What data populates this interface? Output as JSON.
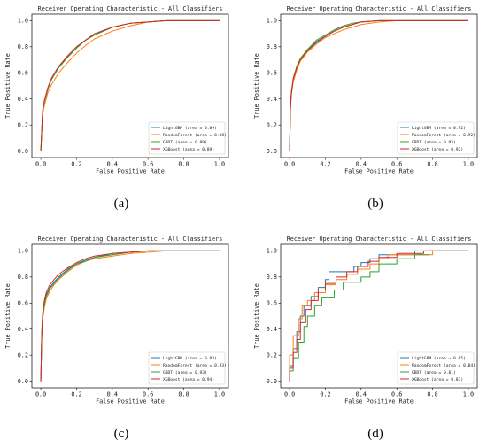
{
  "colors": {
    "LightGBM": "#1f77b4",
    "RandomForest": "#ff7f0e",
    "GBDT": "#2ca02c",
    "XGBoost": "#d62728"
  },
  "chart_data": [
    {
      "type": "line",
      "panel": "(a)",
      "title": "Receiver Operating Characteristic - All Classifiers",
      "xlabel": "False Positive Rate",
      "ylabel": "True Positive Rate",
      "xlim": [
        0,
        1
      ],
      "ylim": [
        0,
        1
      ],
      "ticks": [
        "0.0",
        "0.2",
        "0.4",
        "0.6",
        "0.8",
        "1.0"
      ],
      "legend_position": "lower-right",
      "series": [
        {
          "name": "LightGBM",
          "legend": "LightGBM (area = 0.89)",
          "x": [
            0,
            0.01,
            0.02,
            0.04,
            0.06,
            0.1,
            0.15,
            0.2,
            0.25,
            0.3,
            0.4,
            0.5,
            0.6,
            0.7,
            0.8,
            1.0
          ],
          "y": [
            0,
            0.3,
            0.38,
            0.48,
            0.55,
            0.64,
            0.72,
            0.79,
            0.85,
            0.89,
            0.95,
            0.98,
            0.99,
            1.0,
            1.0,
            1.0
          ]
        },
        {
          "name": "RandomForest",
          "legend": "RandomForest (area = 0.88)",
          "x": [
            0,
            0.01,
            0.02,
            0.04,
            0.06,
            0.1,
            0.15,
            0.2,
            0.25,
            0.3,
            0.4,
            0.5,
            0.6,
            0.7,
            0.8,
            1.0
          ],
          "y": [
            0,
            0.28,
            0.35,
            0.45,
            0.51,
            0.6,
            0.68,
            0.75,
            0.81,
            0.86,
            0.92,
            0.96,
            0.99,
            1.0,
            1.0,
            1.0
          ]
        },
        {
          "name": "GBDT",
          "legend": "GBDT (area = 0.89)",
          "x": [
            0,
            0.01,
            0.02,
            0.04,
            0.06,
            0.1,
            0.15,
            0.2,
            0.25,
            0.3,
            0.4,
            0.5,
            0.6,
            0.7,
            0.8,
            1.0
          ],
          "y": [
            0,
            0.3,
            0.38,
            0.48,
            0.55,
            0.64,
            0.72,
            0.79,
            0.85,
            0.89,
            0.95,
            0.98,
            0.99,
            1.0,
            1.0,
            1.0
          ]
        },
        {
          "name": "XGBoost",
          "legend": "XGBoost (area = 0.89)",
          "x": [
            0,
            0.01,
            0.02,
            0.04,
            0.06,
            0.1,
            0.15,
            0.2,
            0.25,
            0.3,
            0.4,
            0.5,
            0.6,
            0.7,
            0.8,
            1.0
          ],
          "y": [
            0,
            0.31,
            0.39,
            0.49,
            0.56,
            0.65,
            0.73,
            0.8,
            0.85,
            0.9,
            0.95,
            0.98,
            0.99,
            1.0,
            1.0,
            1.0
          ]
        }
      ]
    },
    {
      "type": "line",
      "panel": "(b)",
      "title": "Receiver Operating Characteristic - All Classifiers",
      "xlabel": "False Positive Rate",
      "ylabel": "True Positive Rate",
      "xlim": [
        0,
        1
      ],
      "ylim": [
        0,
        1
      ],
      "ticks": [
        "0.0",
        "0.2",
        "0.4",
        "0.6",
        "0.8",
        "1.0"
      ],
      "legend_position": "lower-right",
      "series": [
        {
          "name": "LightGBM",
          "legend": "LightGBM (area = 0.92)",
          "x": [
            0,
            0.005,
            0.01,
            0.02,
            0.04,
            0.06,
            0.1,
            0.15,
            0.2,
            0.25,
            0.3,
            0.35,
            0.4,
            0.5,
            0.6,
            0.7,
            1.0
          ],
          "y": [
            0,
            0.35,
            0.45,
            0.55,
            0.64,
            0.7,
            0.77,
            0.84,
            0.88,
            0.92,
            0.95,
            0.97,
            0.99,
            1.0,
            1.0,
            1.0,
            1.0
          ]
        },
        {
          "name": "RandomForest",
          "legend": "RandomForest (area = 0.92)",
          "x": [
            0,
            0.005,
            0.01,
            0.02,
            0.04,
            0.06,
            0.1,
            0.15,
            0.2,
            0.25,
            0.3,
            0.35,
            0.4,
            0.5,
            0.6,
            0.7,
            1.0
          ],
          "y": [
            0,
            0.33,
            0.43,
            0.53,
            0.62,
            0.69,
            0.76,
            0.82,
            0.87,
            0.9,
            0.93,
            0.95,
            0.97,
            0.99,
            1.0,
            1.0,
            1.0
          ]
        },
        {
          "name": "GBDT",
          "legend": "GBDT (area = 0.93)",
          "x": [
            0,
            0.005,
            0.01,
            0.02,
            0.04,
            0.06,
            0.1,
            0.15,
            0.2,
            0.25,
            0.3,
            0.35,
            0.4,
            0.5,
            0.6,
            0.7,
            1.0
          ],
          "y": [
            0,
            0.36,
            0.46,
            0.56,
            0.65,
            0.71,
            0.78,
            0.85,
            0.89,
            0.93,
            0.96,
            0.98,
            0.99,
            1.0,
            1.0,
            1.0,
            1.0
          ]
        },
        {
          "name": "XGBoost",
          "legend": "XGBoost (area = 0.92)",
          "x": [
            0,
            0.005,
            0.01,
            0.02,
            0.04,
            0.06,
            0.1,
            0.15,
            0.2,
            0.25,
            0.3,
            0.35,
            0.4,
            0.5,
            0.6,
            0.7,
            1.0
          ],
          "y": [
            0,
            0.34,
            0.44,
            0.55,
            0.64,
            0.7,
            0.77,
            0.83,
            0.88,
            0.92,
            0.95,
            0.97,
            0.99,
            1.0,
            1.0,
            1.0,
            1.0
          ]
        }
      ]
    },
    {
      "type": "line",
      "panel": "(c)",
      "title": "Receiver Operating Characteristic - All Classifiers",
      "xlabel": "False Positive Rate",
      "ylabel": "True Positive Rate",
      "xlim": [
        0,
        1
      ],
      "ylim": [
        0,
        1
      ],
      "ticks": [
        "0.0",
        "0.2",
        "0.4",
        "0.6",
        "0.8",
        "1.0"
      ],
      "legend_position": "lower-right",
      "series": [
        {
          "name": "LightGBM",
          "legend": "LightGBM (area = 0.93)",
          "x": [
            0,
            0.005,
            0.01,
            0.02,
            0.03,
            0.05,
            0.08,
            0.1,
            0.15,
            0.2,
            0.25,
            0.3,
            0.4,
            0.5,
            0.6,
            0.7,
            0.9,
            1.0
          ],
          "y": [
            0,
            0.35,
            0.5,
            0.6,
            0.66,
            0.72,
            0.77,
            0.8,
            0.86,
            0.9,
            0.93,
            0.95,
            0.98,
            0.99,
            1.0,
            1.0,
            1.0,
            1.0
          ]
        },
        {
          "name": "RandomForest",
          "legend": "RandomForest (area = 0.93)",
          "x": [
            0,
            0.005,
            0.01,
            0.02,
            0.03,
            0.05,
            0.08,
            0.1,
            0.15,
            0.2,
            0.25,
            0.3,
            0.4,
            0.5,
            0.6,
            0.7,
            0.9,
            1.0
          ],
          "y": [
            0,
            0.33,
            0.47,
            0.57,
            0.63,
            0.69,
            0.75,
            0.78,
            0.84,
            0.89,
            0.92,
            0.94,
            0.96,
            0.98,
            0.99,
            1.0,
            1.0,
            1.0
          ]
        },
        {
          "name": "GBDT",
          "legend": "GBDT (area = 0.93)",
          "x": [
            0,
            0.005,
            0.01,
            0.02,
            0.03,
            0.05,
            0.08,
            0.1,
            0.15,
            0.2,
            0.25,
            0.3,
            0.4,
            0.5,
            0.6,
            0.7,
            0.9,
            1.0
          ],
          "y": [
            0,
            0.34,
            0.49,
            0.59,
            0.65,
            0.71,
            0.76,
            0.79,
            0.85,
            0.9,
            0.92,
            0.95,
            0.97,
            0.99,
            1.0,
            1.0,
            1.0,
            1.0
          ]
        },
        {
          "name": "XGBoost",
          "legend": "XGBoost (area = 0.94)",
          "x": [
            0,
            0.005,
            0.01,
            0.02,
            0.03,
            0.05,
            0.08,
            0.1,
            0.15,
            0.2,
            0.25,
            0.3,
            0.4,
            0.5,
            0.6,
            0.7,
            0.9,
            1.0
          ],
          "y": [
            0,
            0.37,
            0.52,
            0.62,
            0.68,
            0.74,
            0.79,
            0.82,
            0.87,
            0.91,
            0.94,
            0.96,
            0.98,
            0.99,
            1.0,
            1.0,
            1.0,
            1.0
          ]
        }
      ]
    },
    {
      "type": "line",
      "panel": "(d)",
      "title": "Receiver Operating Characteristic - All Classifiers",
      "xlabel": "False Positive Rate",
      "ylabel": "True Positive Rate",
      "xlim": [
        0,
        1
      ],
      "ylim": [
        0,
        1
      ],
      "ticks": [
        "0.0",
        "0.2",
        "0.4",
        "0.6",
        "0.8",
        "1.0"
      ],
      "legend_position": "lower-right",
      "series": [
        {
          "name": "LightGBM",
          "legend": "LightGBM (area = 0.85)",
          "x": [
            0,
            0,
            0.02,
            0.02,
            0.04,
            0.04,
            0.06,
            0.06,
            0.08,
            0.08,
            0.12,
            0.12,
            0.16,
            0.16,
            0.2,
            0.2,
            0.22,
            0.22,
            0.3,
            0.3,
            0.36,
            0.36,
            0.4,
            0.4,
            0.45,
            0.45,
            0.5,
            0.5,
            0.55,
            0.55,
            0.7,
            0.7,
            1.0
          ],
          "y": [
            0,
            0.12,
            0.12,
            0.25,
            0.25,
            0.38,
            0.38,
            0.5,
            0.5,
            0.58,
            0.58,
            0.65,
            0.65,
            0.72,
            0.72,
            0.78,
            0.78,
            0.84,
            0.84,
            0.84,
            0.84,
            0.88,
            0.88,
            0.91,
            0.91,
            0.94,
            0.94,
            0.97,
            0.97,
            0.97,
            0.97,
            1.0,
            1.0
          ]
        },
        {
          "name": "RandomForest",
          "legend": "RandomForest (area = 0.84)",
          "x": [
            0,
            0,
            0.02,
            0.02,
            0.05,
            0.05,
            0.07,
            0.07,
            0.1,
            0.1,
            0.14,
            0.14,
            0.2,
            0.2,
            0.26,
            0.26,
            0.32,
            0.32,
            0.38,
            0.38,
            0.45,
            0.45,
            0.5,
            0.5,
            0.55,
            0.55,
            0.7,
            0.7,
            0.8,
            0.8,
            1.0
          ],
          "y": [
            0,
            0.2,
            0.2,
            0.35,
            0.35,
            0.48,
            0.48,
            0.58,
            0.58,
            0.62,
            0.62,
            0.68,
            0.68,
            0.74,
            0.74,
            0.78,
            0.78,
            0.82,
            0.82,
            0.86,
            0.86,
            0.9,
            0.9,
            0.94,
            0.94,
            0.97,
            0.97,
            0.97,
            0.97,
            1.0,
            1.0
          ]
        },
        {
          "name": "GBDT",
          "legend": "GBDT (area = 0.81)",
          "x": [
            0,
            0,
            0.02,
            0.02,
            0.05,
            0.05,
            0.08,
            0.08,
            0.1,
            0.1,
            0.14,
            0.14,
            0.18,
            0.18,
            0.25,
            0.25,
            0.3,
            0.3,
            0.4,
            0.4,
            0.45,
            0.45,
            0.5,
            0.5,
            0.6,
            0.6,
            0.7,
            0.7,
            0.78,
            0.78,
            1.0
          ],
          "y": [
            0,
            0.08,
            0.08,
            0.18,
            0.18,
            0.3,
            0.3,
            0.42,
            0.42,
            0.5,
            0.5,
            0.58,
            0.58,
            0.64,
            0.64,
            0.7,
            0.7,
            0.76,
            0.76,
            0.8,
            0.8,
            0.84,
            0.84,
            0.9,
            0.9,
            0.94,
            0.94,
            0.97,
            0.97,
            1.0,
            1.0
          ]
        },
        {
          "name": "XGBoost",
          "legend": "XGBoost (area = 0.83)",
          "x": [
            0,
            0,
            0.02,
            0.02,
            0.04,
            0.04,
            0.06,
            0.06,
            0.09,
            0.09,
            0.12,
            0.12,
            0.16,
            0.16,
            0.2,
            0.2,
            0.26,
            0.26,
            0.32,
            0.32,
            0.38,
            0.38,
            0.44,
            0.44,
            0.5,
            0.5,
            0.6,
            0.6,
            0.75,
            0.75,
            1.0
          ],
          "y": [
            0,
            0.1,
            0.1,
            0.22,
            0.22,
            0.32,
            0.32,
            0.45,
            0.45,
            0.55,
            0.55,
            0.62,
            0.62,
            0.7,
            0.7,
            0.75,
            0.75,
            0.8,
            0.8,
            0.84,
            0.84,
            0.88,
            0.88,
            0.92,
            0.92,
            0.95,
            0.95,
            0.98,
            0.98,
            1.0,
            1.0
          ]
        }
      ]
    }
  ]
}
